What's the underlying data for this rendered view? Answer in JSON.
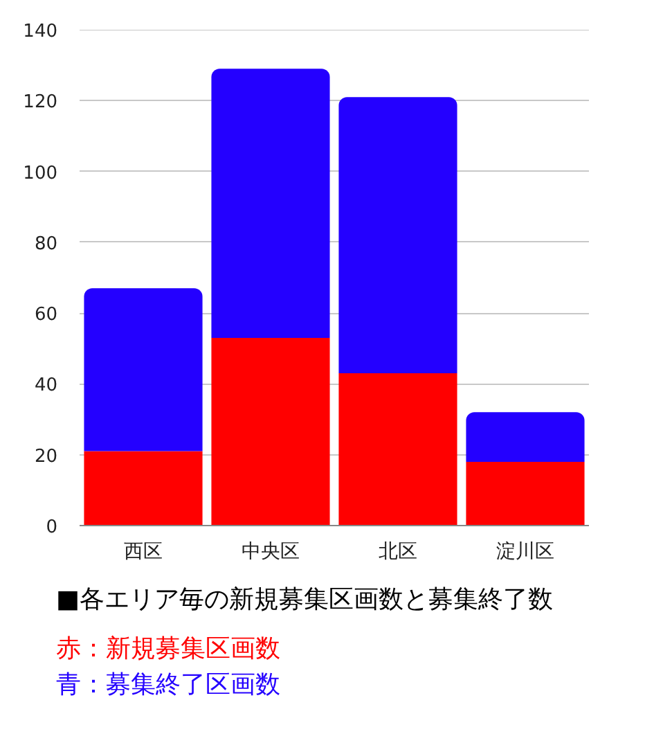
{
  "chart_data": {
    "type": "bar",
    "stacked": true,
    "categories": [
      "西区",
      "中央区",
      "北区",
      "淀川区"
    ],
    "series": [
      {
        "name": "赤：新規募集区画数",
        "color": "#ff0000",
        "values": [
          21,
          53,
          43,
          18
        ]
      },
      {
        "name": "青：募集終了区画数",
        "color": "#2400ff",
        "values": [
          46,
          76,
          78,
          14
        ]
      }
    ],
    "ylim": [
      0,
      140
    ],
    "yticks": [
      0,
      20,
      40,
      60,
      80,
      100,
      120,
      140
    ],
    "grid": "y",
    "legend": "bottom",
    "annotations": [
      "■各エリア毎の新規募集区画数と募集終了数"
    ]
  }
}
